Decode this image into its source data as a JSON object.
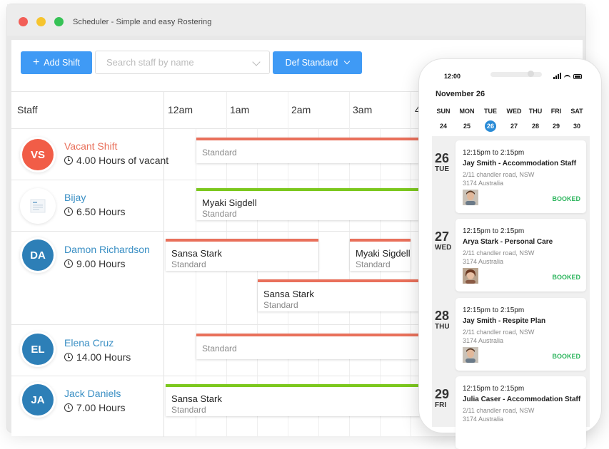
{
  "window": {
    "title": "Scheduler - Simple and easy Rostering"
  },
  "toolbar": {
    "add_shift_label": "Add Shift",
    "search_placeholder": "Search staff by name",
    "filter_label": "Def Standard"
  },
  "grid": {
    "staff_header": "Staff",
    "hours": [
      "12am",
      "1am",
      "2am",
      "3am",
      "4"
    ]
  },
  "colors": {
    "accent": "#3f9af5",
    "shift_red": "#e9705b",
    "shift_green": "#7cc81e",
    "booked": "#2db55d",
    "date_selected": "#2a8bd6"
  },
  "staff": [
    {
      "initials": "VS",
      "avatar_color": "#f15d47",
      "name": "Vacant Shift",
      "name_color": "#e9705b",
      "hours": "4.00 Hours of vacant",
      "shifts": [
        {
          "name": "",
          "type": "Standard",
          "color": "#e9705b"
        }
      ]
    },
    {
      "initials": "",
      "avatar_color": "#ffffff",
      "avatar_icon": "logo-icon",
      "name": "Bijay",
      "name_color": "#3a8fc4",
      "hours": "6.50 Hours",
      "shifts": [
        {
          "name": "Myaki Sigdell",
          "type": "Standard",
          "color": "#7cc81e"
        }
      ]
    },
    {
      "initials": "DA",
      "avatar_color": "#2d7fb7",
      "name": "Damon Richardson",
      "name_color": "#3a8fc4",
      "hours": "9.00 Hours",
      "shifts": [
        {
          "name": "Sansa Stark",
          "type": "Standard",
          "color": "#e9705b"
        },
        {
          "name": "Myaki Sigdell",
          "type": "Standard",
          "color": "#e9705b"
        },
        {
          "name": "Sansa Stark",
          "type": "Standard",
          "color": "#e9705b"
        }
      ]
    },
    {
      "initials": "EL",
      "avatar_color": "#2d7fb7",
      "name": "Elena Cruz",
      "name_color": "#3a8fc4",
      "hours": "14.00 Hours",
      "shifts": [
        {
          "name": "",
          "type": "Standard",
          "color": "#e9705b"
        }
      ]
    },
    {
      "initials": "JA",
      "avatar_color": "#2d7fb7",
      "name": "Jack Daniels",
      "name_color": "#3a8fc4",
      "hours": "7.00 Hours",
      "shifts": [
        {
          "name": "Sansa Stark",
          "type": "Standard",
          "color": "#7cc81e"
        }
      ]
    }
  ],
  "phone": {
    "time": "12:00",
    "month": "November 26",
    "week": [
      {
        "day": "SUN",
        "date": "24"
      },
      {
        "day": "MON",
        "date": "25"
      },
      {
        "day": "TUE",
        "date": "26"
      },
      {
        "day": "WED",
        "date": "27"
      },
      {
        "day": "THU",
        "date": "28"
      },
      {
        "day": "FRI",
        "date": "29"
      },
      {
        "day": "SAT",
        "date": "30"
      }
    ],
    "shifts": [
      {
        "day_num": "26",
        "day_name": "TUE",
        "time": "12:15pm to 2:15pm",
        "title": "Jay Smith - Accommodation Staff",
        "address_line1": "2/11 chandler road, NSW",
        "address_line2": "3174 Australia",
        "status": "BOOKED"
      },
      {
        "day_num": "27",
        "day_name": "WED",
        "time": "12:15pm to 2:15pm",
        "title": "Arya Stark - Personal Care",
        "address_line1": "2/11 chandler road, NSW",
        "address_line2": "3174 Australia",
        "status": "BOOKED"
      },
      {
        "day_num": "28",
        "day_name": "THU",
        "time": "12:15pm to 2:15pm",
        "title": "Jay Smith - Respite Plan",
        "address_line1": "2/11 chandler road, NSW",
        "address_line2": "3174 Australia",
        "status": "BOOKED"
      },
      {
        "day_num": "29",
        "day_name": "FRI",
        "time": "12:15pm to 2:15pm",
        "title": "Julia Caser - Accommodation Staff",
        "address_line1": "2/11 chandler road, NSW",
        "address_line2": "3174 Australia",
        "status": ""
      }
    ]
  }
}
